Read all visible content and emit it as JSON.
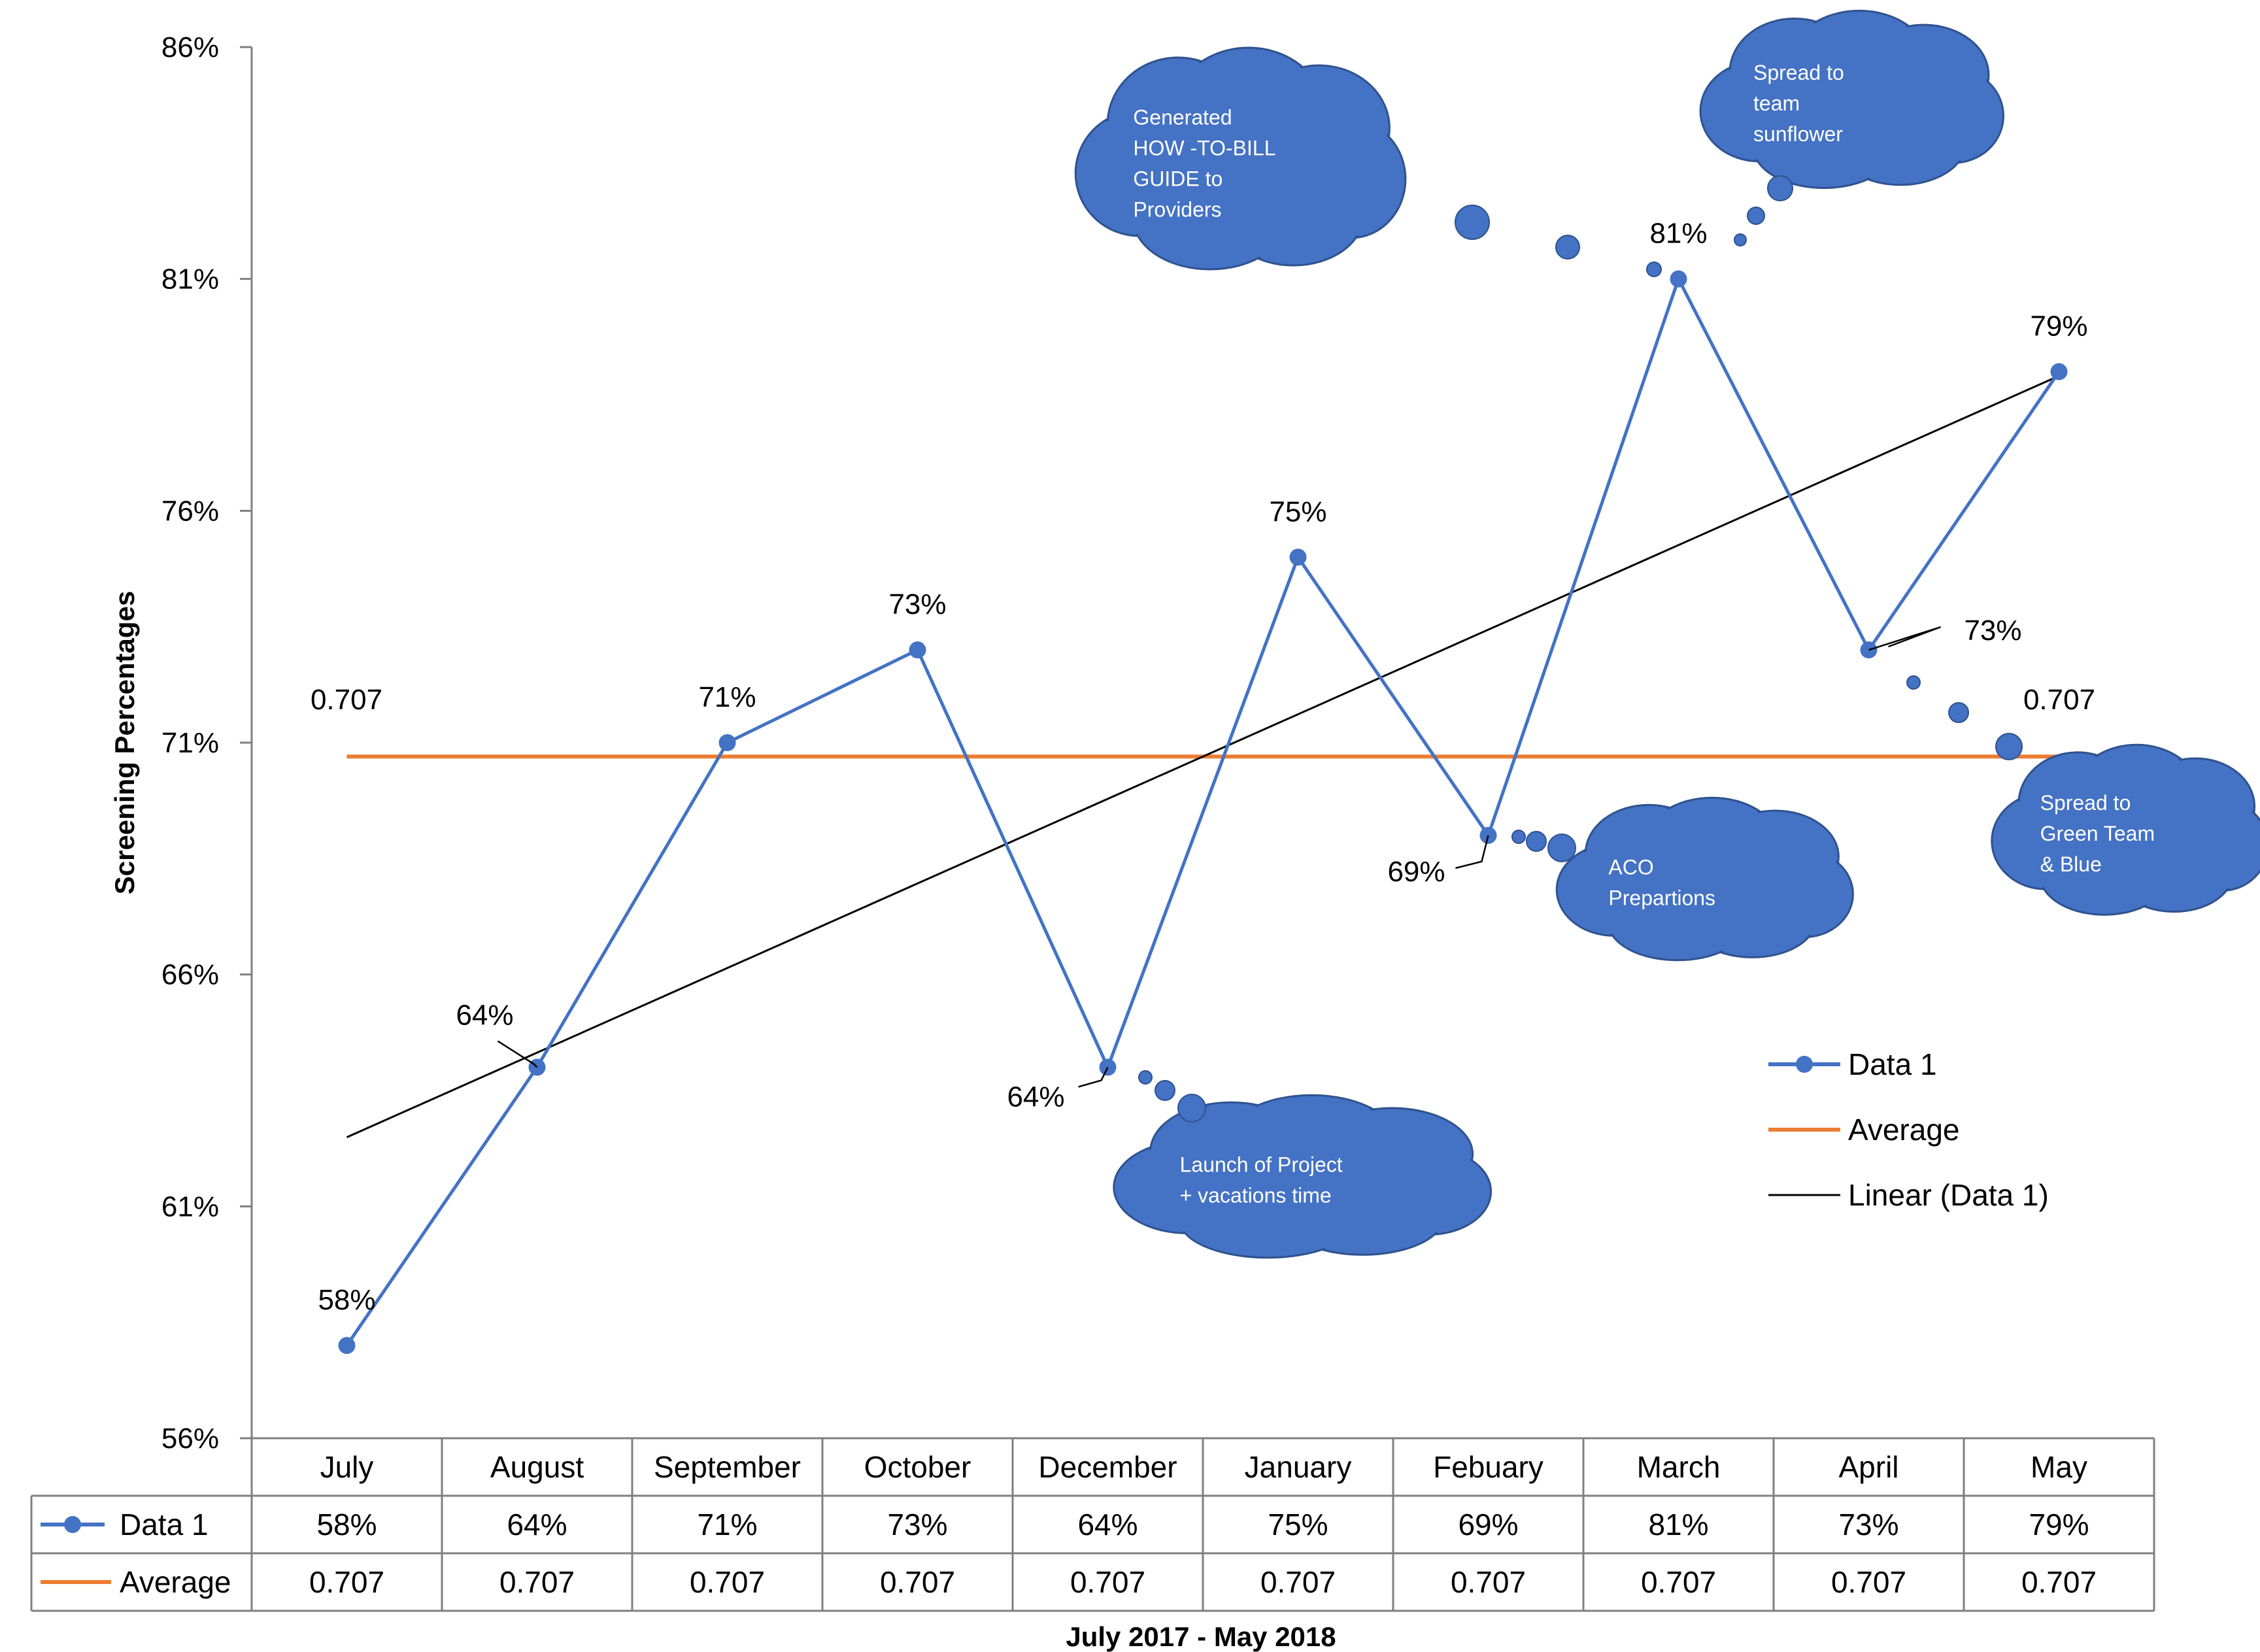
{
  "chart_data": {
    "type": "line",
    "categories": [
      "July",
      "August",
      "September",
      "October",
      "December",
      "January",
      "Febuary",
      "March",
      "April",
      "May"
    ],
    "series": [
      {
        "name": "Data 1",
        "values": [
          58,
          64,
          71,
          73,
          64,
          75,
          69,
          81,
          73,
          79
        ],
        "labels": [
          "58%",
          "64%",
          "71%",
          "73%",
          "64%",
          "75%",
          "69%",
          "81%",
          "73%",
          "79%"
        ],
        "color": "#4472c4"
      },
      {
        "name": "Average",
        "values": [
          70.7,
          70.7,
          70.7,
          70.7,
          70.7,
          70.7,
          70.7,
          70.7,
          70.7,
          70.7
        ],
        "labels": [
          "0.707",
          "0.707",
          "0.707",
          "0.707",
          "0.707",
          "0.707",
          "0.707",
          "0.707",
          "0.707",
          "0.707"
        ],
        "color": "#ed7d31"
      }
    ],
    "trendline": {
      "name": "Linear (Data 1)",
      "type": "linear",
      "color": "#000000"
    },
    "average_label": "0.707",
    "ylim": [
      56,
      86
    ],
    "yticks": [
      56,
      61,
      66,
      71,
      76,
      81,
      86
    ],
    "ytick_labels": [
      "56%",
      "61%",
      "66%",
      "71%",
      "76%",
      "81%",
      "86%"
    ],
    "ylabel": "Screening Percentages",
    "xlabel": "July 2017 - May 2018",
    "legend_position": "right",
    "data_table": true,
    "annotations": [
      {
        "lines": [
          "Generated",
          "HOW -TO-BILL",
          "GUIDE to",
          "Providers"
        ],
        "near": "March"
      },
      {
        "lines": [
          "Spread to",
          "team",
          "sunflower"
        ],
        "near": "March"
      },
      {
        "lines": [
          "ACO",
          "Prepartions"
        ],
        "near": "Febuary"
      },
      {
        "lines": [
          "Launch of Project",
          "+ vacations time"
        ],
        "near": "December"
      },
      {
        "lines": [
          "Spread to",
          "Green Team",
          "& Blue"
        ],
        "near": "May"
      }
    ]
  }
}
